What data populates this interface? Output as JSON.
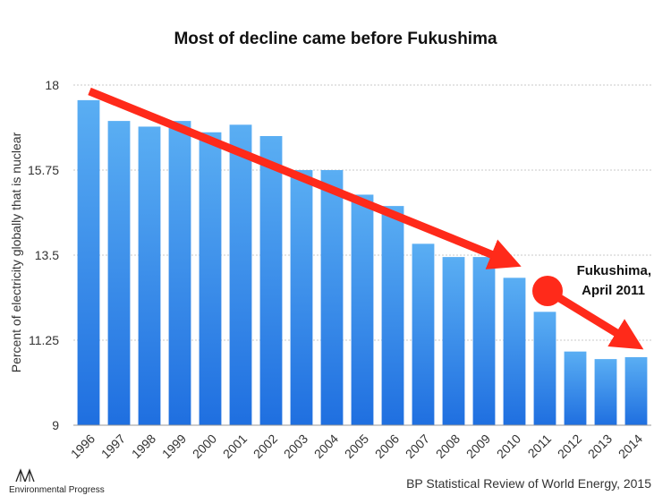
{
  "chart_data": {
    "type": "bar",
    "title": "Most of decline came before Fukushima",
    "xlabel": "",
    "ylabel": "Percent of electricity globally that is nuclear",
    "ylim": [
      9,
      18
    ],
    "yticks": [
      "9",
      "11.25",
      "13.5",
      "15.75",
      "18"
    ],
    "grid": true,
    "categories": [
      "1996",
      "1997",
      "1998",
      "1999",
      "2000",
      "2001",
      "2002",
      "2003",
      "2004",
      "2005",
      "2006",
      "2007",
      "2008",
      "2009",
      "2010",
      "2011",
      "2012",
      "2013",
      "2014"
    ],
    "values": [
      17.6,
      17.05,
      16.9,
      17.05,
      16.75,
      16.95,
      16.65,
      15.75,
      15.75,
      15.1,
      14.8,
      13.8,
      13.45,
      13.45,
      12.9,
      12.0,
      10.95,
      10.75,
      10.8
    ],
    "annotation": {
      "line1": "Fukushima,",
      "line2": "April 2011",
      "color": "#ff2a1a"
    },
    "bar_color_top": "#5aaef3",
    "bar_color_bottom": "#1f6fe0"
  },
  "source": "BP Statistical Review of World Energy, 2015",
  "logo": {
    "text": "Environmental Progress",
    "icon": "tree-logo-icon"
  }
}
